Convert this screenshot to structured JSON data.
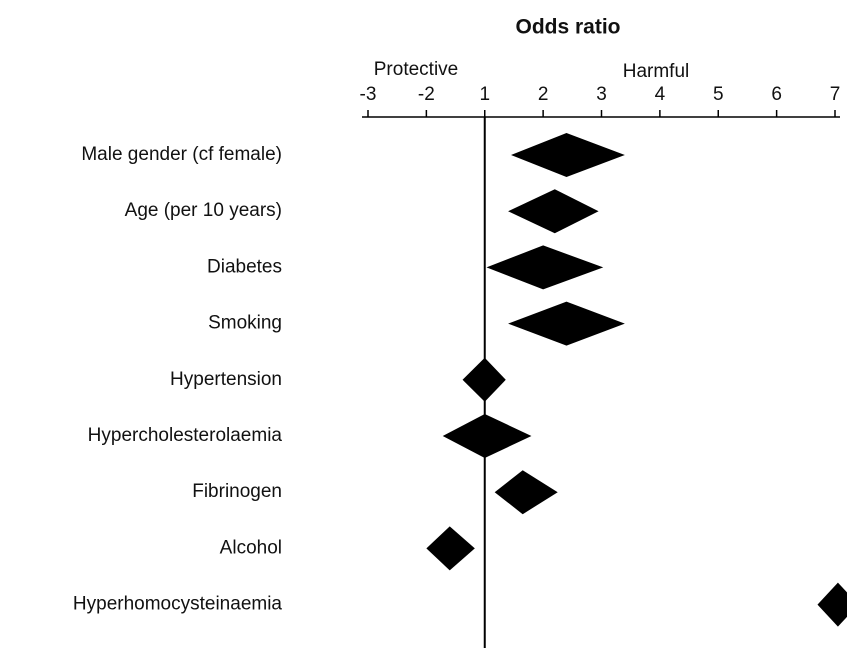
{
  "chart_data": {
    "type": "forest",
    "title": "Odds ratio",
    "annotations": [
      "Protective",
      "Harmful"
    ],
    "categories": [
      "Male gender (cf female)",
      "Age (per 10 years)",
      "Diabetes",
      "Smoking",
      "Hypertension",
      "Hypercholesterolaemia",
      "Fibrinogen",
      "Alcohol",
      "Hyperhomocysteinaemia"
    ],
    "values": [
      2.4,
      2.2,
      2.0,
      2.4,
      1.0,
      1.0,
      1.65,
      -1.6,
      7.05
    ],
    "lower": [
      1.45,
      1.4,
      1.03,
      1.4,
      -1.38,
      -1.72,
      1.17,
      -2.0,
      6.7
    ],
    "upper": [
      3.4,
      2.95,
      3.03,
      3.4,
      1.36,
      1.8,
      2.25,
      -1.17,
      7.4
    ],
    "color": "#000000",
    "reference_line": 1,
    "xlim": [
      -3,
      7
    ],
    "xticks": [
      -3,
      -2,
      1,
      2,
      3,
      4,
      5,
      6,
      7
    ]
  }
}
